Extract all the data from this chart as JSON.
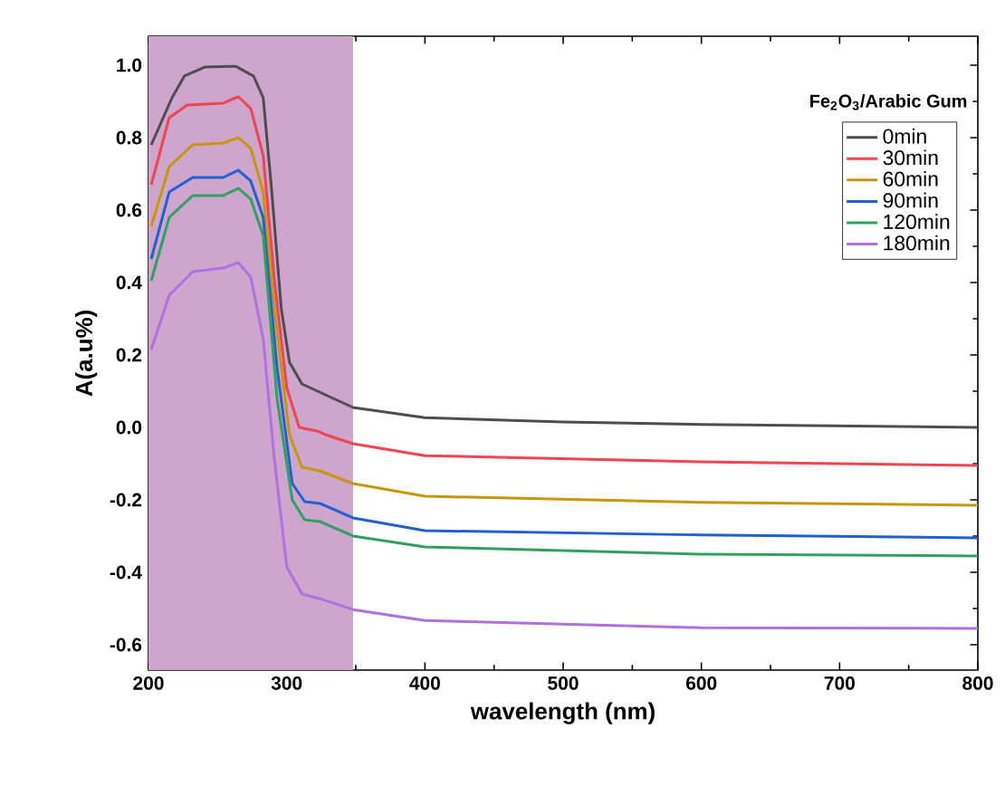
{
  "chart_data": {
    "type": "line",
    "xlabel": "wavelength (nm)",
    "ylabel": "A(a.u%)",
    "legend_title": "Fe$_{2}$O$_{3}$/Arabic Gum",
    "xlim": [
      200,
      800
    ],
    "ylim": [
      -0.67,
      1.08
    ],
    "xticks": [
      200,
      300,
      400,
      500,
      600,
      700,
      800
    ],
    "yticks": [
      {
        "value": -0.6,
        "label": "-0.6"
      },
      {
        "value": -0.4,
        "label": "-0.4"
      },
      {
        "value": -0.2,
        "label": "-0.2"
      },
      {
        "value": 0,
        "label": "0.0"
      },
      {
        "value": 0.2,
        "label": "0.2"
      },
      {
        "value": 0.4,
        "label": "0.4"
      },
      {
        "value": 0.6,
        "label": "0.6"
      },
      {
        "value": 0.8,
        "label": "0.8"
      },
      {
        "value": 1.0,
        "label": "1.0"
      }
    ],
    "grid": false,
    "legend": "top right",
    "marker": "none",
    "line_style": "solid",
    "bands": [
      {
        "axis": "x",
        "from": 200,
        "to": 348,
        "color": "#cda5cd"
      }
    ],
    "series": [
      {
        "name": "0min",
        "color": "#4d4d4d",
        "x": [
          202,
          217,
          226,
          241,
          263,
          276,
          283,
          289,
          296,
          302,
          311,
          328,
          348,
          400,
          500,
          600,
          800
        ],
        "values": [
          0.78,
          0.91,
          0.97,
          0.995,
          0.997,
          0.97,
          0.91,
          0.66,
          0.33,
          0.18,
          0.12,
          0.09,
          0.055,
          0.027,
          0.015,
          0.008,
          0.0
        ]
      },
      {
        "name": "30min",
        "color": "#f0454f",
        "x": [
          202,
          215,
          228,
          254,
          265,
          274,
          283,
          291,
          300,
          309,
          322,
          328,
          348,
          400,
          600,
          800
        ],
        "values": [
          0.67,
          0.855,
          0.89,
          0.895,
          0.913,
          0.88,
          0.75,
          0.41,
          0.11,
          0.0,
          -0.01,
          -0.02,
          -0.045,
          -0.078,
          -0.095,
          -0.105
        ]
      },
      {
        "name": "60min",
        "color": "#c8960a",
        "x": [
          202,
          215,
          232,
          254,
          265,
          274,
          283,
          291,
          302,
          311,
          324,
          348,
          400,
          600,
          800
        ],
        "values": [
          0.555,
          0.72,
          0.78,
          0.785,
          0.8,
          0.77,
          0.65,
          0.33,
          -0.02,
          -0.11,
          -0.12,
          -0.155,
          -0.19,
          -0.207,
          -0.215
        ]
      },
      {
        "name": "90min",
        "color": "#2060d0",
        "x": [
          202,
          215,
          232,
          254,
          265,
          274,
          283,
          293,
          304,
          313,
          324,
          348,
          400,
          600,
          800
        ],
        "values": [
          0.465,
          0.65,
          0.69,
          0.69,
          0.71,
          0.68,
          0.58,
          0.165,
          -0.155,
          -0.205,
          -0.21,
          -0.25,
          -0.285,
          -0.297,
          -0.305
        ]
      },
      {
        "name": "120min",
        "color": "#30a060",
        "x": [
          202,
          215,
          232,
          254,
          265,
          274,
          283,
          293,
          304,
          313,
          324,
          348,
          400,
          600,
          800
        ],
        "values": [
          0.405,
          0.58,
          0.64,
          0.64,
          0.66,
          0.63,
          0.53,
          0.08,
          -0.2,
          -0.255,
          -0.26,
          -0.3,
          -0.33,
          -0.35,
          -0.355
        ]
      },
      {
        "name": "180min",
        "color": "#b070e0",
        "x": [
          202,
          215,
          232,
          254,
          265,
          274,
          283,
          291,
          300,
          311,
          324,
          348,
          400,
          600,
          800
        ],
        "values": [
          0.215,
          0.365,
          0.43,
          0.44,
          0.455,
          0.415,
          0.245,
          -0.085,
          -0.385,
          -0.46,
          -0.473,
          -0.503,
          -0.533,
          -0.553,
          -0.555
        ]
      }
    ]
  }
}
